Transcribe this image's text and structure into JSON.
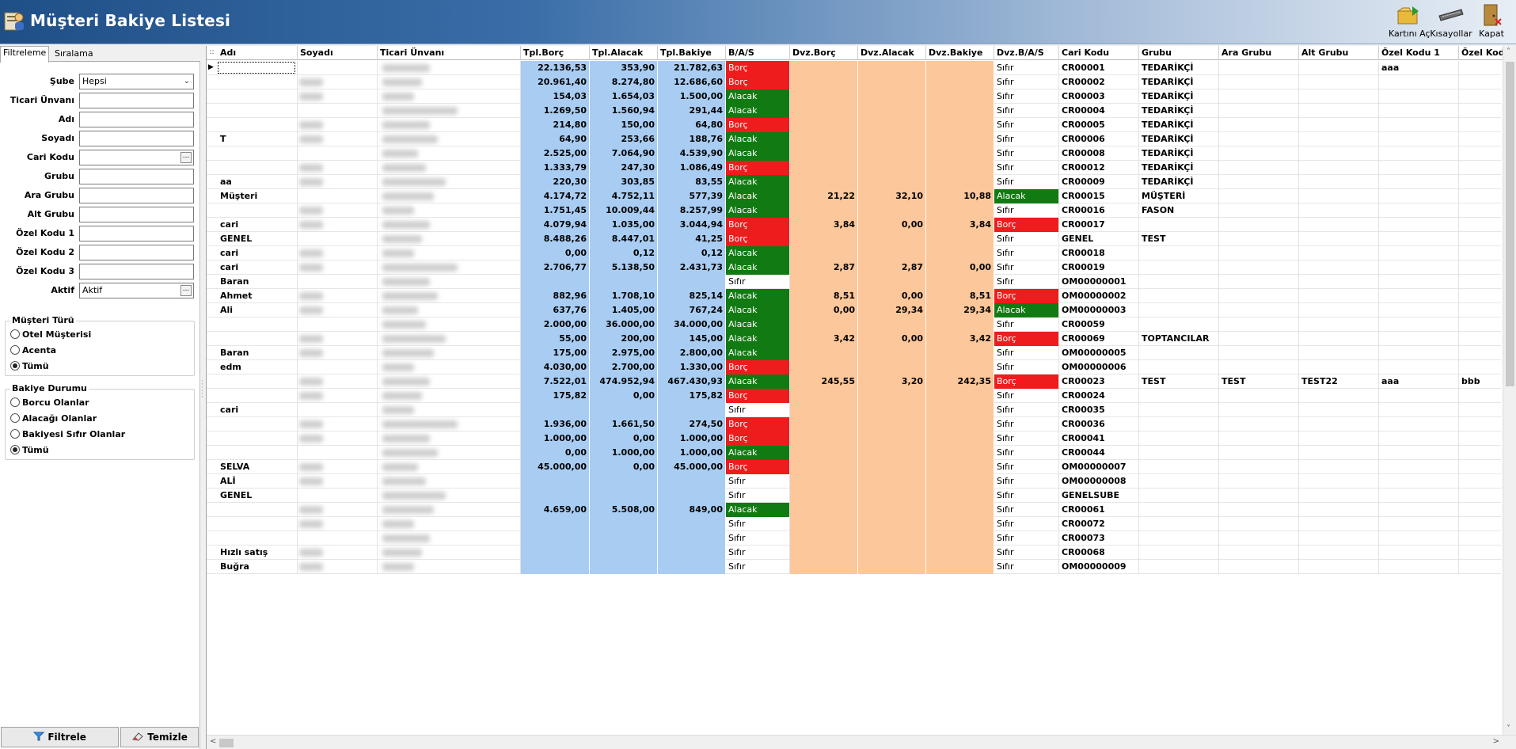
{
  "app": {
    "title": "Müşteri Bakiye Listesi"
  },
  "toolbar": {
    "open_card": "Kartını Aç",
    "shortcuts": "Kısayollar",
    "close": "Kapat"
  },
  "left": {
    "tabs": [
      "Filtreleme",
      "Sıralama"
    ],
    "filters": [
      {
        "label": "Şube",
        "value": "Hepsi",
        "kind": "dropdown"
      },
      {
        "label": "Ticari Ünvanı",
        "value": "",
        "kind": "text"
      },
      {
        "label": "Adı",
        "value": "",
        "kind": "text"
      },
      {
        "label": "Soyadı",
        "value": "",
        "kind": "text"
      },
      {
        "label": "Cari Kodu",
        "value": "",
        "kind": "ellipsis"
      },
      {
        "label": "Grubu",
        "value": "",
        "kind": "text"
      },
      {
        "label": "Ara Grubu",
        "value": "",
        "kind": "text"
      },
      {
        "label": "Alt Grubu",
        "value": "",
        "kind": "text"
      },
      {
        "label": "Özel Kodu 1",
        "value": "",
        "kind": "text"
      },
      {
        "label": "Özel Kodu 2",
        "value": "",
        "kind": "text"
      },
      {
        "label": "Özel Kodu 3",
        "value": "",
        "kind": "text"
      },
      {
        "label": "Aktif",
        "value": "Aktif",
        "kind": "ellipsis"
      }
    ],
    "customer_type": {
      "title": "Müşteri Türü",
      "options": [
        "Otel Müşterisi",
        "Acenta",
        "Tümü"
      ],
      "selected": 2
    },
    "balance_status": {
      "title": "Bakiye Durumu",
      "options": [
        "Borcu Olanlar",
        "Alacağı Olanlar",
        "Bakiyesi Sıfır Olanlar",
        "Tümü"
      ],
      "selected": 3
    },
    "filter_button": "Filtrele",
    "clear_button": "Temizle"
  },
  "grid": {
    "columns": [
      "Adı",
      "Soyadı",
      "Ticari Ünvanı",
      "Tpl.Borç",
      "Tpl.Alacak",
      "Tpl.Bakiye",
      "B/A/S",
      "Dvz.Borç",
      "Dvz.Alacak",
      "Dvz.Bakiye",
      "Dvz.B/A/S",
      "Cari Kodu",
      "Grubu",
      "Ara Grubu",
      "Alt Grubu",
      "Özel Kodu 1",
      "Özel Kodu"
    ],
    "rows": [
      {
        "adi": "",
        "borc": "22.136,53",
        "alacak": "353,90",
        "bakiye": "21.782,63",
        "bas": "Borç",
        "dborc": "",
        "dalacak": "",
        "dbakiye": "",
        "dbas": "Sıfır",
        "kod": "CR00001",
        "grubu": "TEDARİKÇİ",
        "ara": "",
        "alt": "",
        "ozel1": "aaa",
        "ozel": ""
      },
      {
        "adi": "",
        "borc": "20.961,40",
        "alacak": "8.274,80",
        "bakiye": "12.686,60",
        "bas": "Borç",
        "dborc": "",
        "dalacak": "",
        "dbakiye": "",
        "dbas": "Sıfır",
        "kod": "CR00002",
        "grubu": "TEDARİKÇİ",
        "ara": "",
        "alt": "",
        "ozel1": "",
        "ozel": ""
      },
      {
        "adi": "",
        "borc": "154,03",
        "alacak": "1.654,03",
        "bakiye": "1.500,00",
        "bas": "Alacak",
        "dborc": "",
        "dalacak": "",
        "dbakiye": "",
        "dbas": "Sıfır",
        "kod": "CR00003",
        "grubu": "TEDARİKÇİ",
        "ara": "",
        "alt": "",
        "ozel1": "",
        "ozel": ""
      },
      {
        "adi": "",
        "borc": "1.269,50",
        "alacak": "1.560,94",
        "bakiye": "291,44",
        "bas": "Alacak",
        "dborc": "",
        "dalacak": "",
        "dbakiye": "",
        "dbas": "Sıfır",
        "kod": "CR00004",
        "grubu": "TEDARİKÇİ",
        "ara": "",
        "alt": "",
        "ozel1": "",
        "ozel": ""
      },
      {
        "adi": "",
        "borc": "214,80",
        "alacak": "150,00",
        "bakiye": "64,80",
        "bas": "Borç",
        "dborc": "",
        "dalacak": "",
        "dbakiye": "",
        "dbas": "Sıfır",
        "kod": "CR00005",
        "grubu": "TEDARİKÇİ",
        "ara": "",
        "alt": "",
        "ozel1": "",
        "ozel": ""
      },
      {
        "adi": "T",
        "borc": "64,90",
        "alacak": "253,66",
        "bakiye": "188,76",
        "bas": "Alacak",
        "dborc": "",
        "dalacak": "",
        "dbakiye": "",
        "dbas": "Sıfır",
        "kod": "CR00006",
        "grubu": "TEDARİKÇİ",
        "ara": "",
        "alt": "",
        "ozel1": "",
        "ozel": ""
      },
      {
        "adi": "",
        "borc": "2.525,00",
        "alacak": "7.064,90",
        "bakiye": "4.539,90",
        "bas": "Alacak",
        "dborc": "",
        "dalacak": "",
        "dbakiye": "",
        "dbas": "Sıfır",
        "kod": "CR00008",
        "grubu": "TEDARİKÇİ",
        "ara": "",
        "alt": "",
        "ozel1": "",
        "ozel": ""
      },
      {
        "adi": "",
        "borc": "1.333,79",
        "alacak": "247,30",
        "bakiye": "1.086,49",
        "bas": "Borç",
        "dborc": "",
        "dalacak": "",
        "dbakiye": "",
        "dbas": "Sıfır",
        "kod": "CR00012",
        "grubu": "TEDARİKÇİ",
        "ara": "",
        "alt": "",
        "ozel1": "",
        "ozel": ""
      },
      {
        "adi": "aa",
        "borc": "220,30",
        "alacak": "303,85",
        "bakiye": "83,55",
        "bas": "Alacak",
        "dborc": "",
        "dalacak": "",
        "dbakiye": "",
        "dbas": "Sıfır",
        "kod": "CR00009",
        "grubu": "TEDARİKÇİ",
        "ara": "",
        "alt": "",
        "ozel1": "",
        "ozel": ""
      },
      {
        "adi": "Müşteri",
        "borc": "4.174,72",
        "alacak": "4.752,11",
        "bakiye": "577,39",
        "bas": "Alacak",
        "dborc": "21,22",
        "dalacak": "32,10",
        "dbakiye": "10,88",
        "dbas": "Alacak",
        "kod": "CR00015",
        "grubu": "MÜŞTERİ",
        "ara": "",
        "alt": "",
        "ozel1": "",
        "ozel": ""
      },
      {
        "adi": "",
        "borc": "1.751,45",
        "alacak": "10.009,44",
        "bakiye": "8.257,99",
        "bas": "Alacak",
        "dborc": "",
        "dalacak": "",
        "dbakiye": "",
        "dbas": "Sıfır",
        "kod": "CR00016",
        "grubu": "FASON",
        "ara": "",
        "alt": "",
        "ozel1": "",
        "ozel": ""
      },
      {
        "adi": "cari",
        "borc": "4.079,94",
        "alacak": "1.035,00",
        "bakiye": "3.044,94",
        "bas": "Borç",
        "dborc": "3,84",
        "dalacak": "0,00",
        "dbakiye": "3,84",
        "dbas": "Borç",
        "kod": "CR00017",
        "grubu": "",
        "ara": "",
        "alt": "",
        "ozel1": "",
        "ozel": ""
      },
      {
        "adi": "GENEL",
        "borc": "8.488,26",
        "alacak": "8.447,01",
        "bakiye": "41,25",
        "bas": "Borç",
        "dborc": "",
        "dalacak": "",
        "dbakiye": "",
        "dbas": "Sıfır",
        "kod": "GENEL",
        "grubu": "TEST",
        "ara": "",
        "alt": "",
        "ozel1": "",
        "ozel": ""
      },
      {
        "adi": "cari",
        "borc": "0,00",
        "alacak": "0,12",
        "bakiye": "0,12",
        "bas": "Alacak",
        "dborc": "",
        "dalacak": "",
        "dbakiye": "",
        "dbas": "Sıfır",
        "kod": "CR00018",
        "grubu": "",
        "ara": "",
        "alt": "",
        "ozel1": "",
        "ozel": ""
      },
      {
        "adi": "cari",
        "borc": "2.706,77",
        "alacak": "5.138,50",
        "bakiye": "2.431,73",
        "bas": "Alacak",
        "dborc": "2,87",
        "dalacak": "2,87",
        "dbakiye": "0,00",
        "dbas": "Sıfır",
        "kod": "CR00019",
        "grubu": "",
        "ara": "",
        "alt": "",
        "ozel1": "",
        "ozel": ""
      },
      {
        "adi": "Baran",
        "borc": "",
        "alacak": "",
        "bakiye": "",
        "bas": "Sıfır",
        "dborc": "",
        "dalacak": "",
        "dbakiye": "",
        "dbas": "Sıfır",
        "kod": "OM00000001",
        "grubu": "",
        "ara": "",
        "alt": "",
        "ozel1": "",
        "ozel": ""
      },
      {
        "adi": "Ahmet",
        "borc": "882,96",
        "alacak": "1.708,10",
        "bakiye": "825,14",
        "bas": "Alacak",
        "dborc": "8,51",
        "dalacak": "0,00",
        "dbakiye": "8,51",
        "dbas": "Borç",
        "kod": "OM00000002",
        "grubu": "",
        "ara": "",
        "alt": "",
        "ozel1": "",
        "ozel": ""
      },
      {
        "adi": "Ali",
        "borc": "637,76",
        "alacak": "1.405,00",
        "bakiye": "767,24",
        "bas": "Alacak",
        "dborc": "0,00",
        "dalacak": "29,34",
        "dbakiye": "29,34",
        "dbas": "Alacak",
        "kod": "OM00000003",
        "grubu": "",
        "ara": "",
        "alt": "",
        "ozel1": "",
        "ozel": ""
      },
      {
        "adi": "",
        "borc": "2.000,00",
        "alacak": "36.000,00",
        "bakiye": "34.000,00",
        "bas": "Alacak",
        "dborc": "",
        "dalacak": "",
        "dbakiye": "",
        "dbas": "Sıfır",
        "kod": "CR00059",
        "grubu": "",
        "ara": "",
        "alt": "",
        "ozel1": "",
        "ozel": ""
      },
      {
        "adi": "",
        "borc": "55,00",
        "alacak": "200,00",
        "bakiye": "145,00",
        "bas": "Alacak",
        "dborc": "3,42",
        "dalacak": "0,00",
        "dbakiye": "3,42",
        "dbas": "Borç",
        "kod": "CR00069",
        "grubu": "TOPTANCILAR",
        "ara": "",
        "alt": "",
        "ozel1": "",
        "ozel": ""
      },
      {
        "adi": "Baran",
        "borc": "175,00",
        "alacak": "2.975,00",
        "bakiye": "2.800,00",
        "bas": "Alacak",
        "dborc": "",
        "dalacak": "",
        "dbakiye": "",
        "dbas": "Sıfır",
        "kod": "OM00000005",
        "grubu": "",
        "ara": "",
        "alt": "",
        "ozel1": "",
        "ozel": ""
      },
      {
        "adi": "edm",
        "borc": "4.030,00",
        "alacak": "2.700,00",
        "bakiye": "1.330,00",
        "bas": "Borç",
        "dborc": "",
        "dalacak": "",
        "dbakiye": "",
        "dbas": "Sıfır",
        "kod": "OM00000006",
        "grubu": "",
        "ara": "",
        "alt": "",
        "ozel1": "",
        "ozel": ""
      },
      {
        "adi": "",
        "borc": "7.522,01",
        "alacak": "474.952,94",
        "bakiye": "467.430,93",
        "bas": "Alacak",
        "dborc": "245,55",
        "dalacak": "3,20",
        "dbakiye": "242,35",
        "dbas": "Borç",
        "kod": "CR00023",
        "grubu": "TEST",
        "ara": "TEST",
        "alt": "TEST22",
        "ozel1": "aaa",
        "ozel": "bbb"
      },
      {
        "adi": "",
        "borc": "175,82",
        "alacak": "0,00",
        "bakiye": "175,82",
        "bas": "Borç",
        "dborc": "",
        "dalacak": "",
        "dbakiye": "",
        "dbas": "Sıfır",
        "kod": "CR00024",
        "grubu": "",
        "ara": "",
        "alt": "",
        "ozel1": "",
        "ozel": ""
      },
      {
        "adi": "cari",
        "borc": "",
        "alacak": "",
        "bakiye": "",
        "bas": "Sıfır",
        "dborc": "",
        "dalacak": "",
        "dbakiye": "",
        "dbas": "Sıfır",
        "kod": "CR00035",
        "grubu": "",
        "ara": "",
        "alt": "",
        "ozel1": "",
        "ozel": ""
      },
      {
        "adi": "",
        "borc": "1.936,00",
        "alacak": "1.661,50",
        "bakiye": "274,50",
        "bas": "Borç",
        "dborc": "",
        "dalacak": "",
        "dbakiye": "",
        "dbas": "Sıfır",
        "kod": "CR00036",
        "grubu": "",
        "ara": "",
        "alt": "",
        "ozel1": "",
        "ozel": ""
      },
      {
        "adi": "",
        "borc": "1.000,00",
        "alacak": "0,00",
        "bakiye": "1.000,00",
        "bas": "Borç",
        "dborc": "",
        "dalacak": "",
        "dbakiye": "",
        "dbas": "Sıfır",
        "kod": "CR00041",
        "grubu": "",
        "ara": "",
        "alt": "",
        "ozel1": "",
        "ozel": ""
      },
      {
        "adi": "",
        "borc": "0,00",
        "alacak": "1.000,00",
        "bakiye": "1.000,00",
        "bas": "Alacak",
        "dborc": "",
        "dalacak": "",
        "dbakiye": "",
        "dbas": "Sıfır",
        "kod": "CR00044",
        "grubu": "",
        "ara": "",
        "alt": "",
        "ozel1": "",
        "ozel": ""
      },
      {
        "adi": "SELVA",
        "borc": "45.000,00",
        "alacak": "0,00",
        "bakiye": "45.000,00",
        "bas": "Borç",
        "dborc": "",
        "dalacak": "",
        "dbakiye": "",
        "dbas": "Sıfır",
        "kod": "OM00000007",
        "grubu": "",
        "ara": "",
        "alt": "",
        "ozel1": "",
        "ozel": ""
      },
      {
        "adi": "ALİ",
        "borc": "",
        "alacak": "",
        "bakiye": "",
        "bas": "Sıfır",
        "dborc": "",
        "dalacak": "",
        "dbakiye": "",
        "dbas": "Sıfır",
        "kod": "OM00000008",
        "grubu": "",
        "ara": "",
        "alt": "",
        "ozel1": "",
        "ozel": ""
      },
      {
        "adi": "GENEL",
        "borc": "",
        "alacak": "",
        "bakiye": "",
        "bas": "Sıfır",
        "dborc": "",
        "dalacak": "",
        "dbakiye": "",
        "dbas": "Sıfır",
        "kod": "GENELSUBE",
        "grubu": "",
        "ara": "",
        "alt": "",
        "ozel1": "",
        "ozel": ""
      },
      {
        "adi": "",
        "borc": "4.659,00",
        "alacak": "5.508,00",
        "bakiye": "849,00",
        "bas": "Alacak",
        "dborc": "",
        "dalacak": "",
        "dbakiye": "",
        "dbas": "Sıfır",
        "kod": "CR00061",
        "grubu": "",
        "ara": "",
        "alt": "",
        "ozel1": "",
        "ozel": ""
      },
      {
        "adi": "",
        "borc": "",
        "alacak": "",
        "bakiye": "",
        "bas": "Sıfır",
        "dborc": "",
        "dalacak": "",
        "dbakiye": "",
        "dbas": "Sıfır",
        "kod": "CR00072",
        "grubu": "",
        "ara": "",
        "alt": "",
        "ozel1": "",
        "ozel": ""
      },
      {
        "adi": "",
        "borc": "",
        "alacak": "",
        "bakiye": "",
        "bas": "Sıfır",
        "dborc": "",
        "dalacak": "",
        "dbakiye": "",
        "dbas": "Sıfır",
        "kod": "CR00073",
        "grubu": "",
        "ara": "",
        "alt": "",
        "ozel1": "",
        "ozel": ""
      },
      {
        "adi": "Hızlı satış",
        "borc": "",
        "alacak": "",
        "bakiye": "",
        "bas": "Sıfır",
        "dborc": "",
        "dalacak": "",
        "dbakiye": "",
        "dbas": "Sıfır",
        "kod": "CR00068",
        "grubu": "",
        "ara": "",
        "alt": "",
        "ozel1": "",
        "ozel": ""
      },
      {
        "adi": "Buğra",
        "borc": "",
        "alacak": "",
        "bakiye": "",
        "bas": "Sıfır",
        "dborc": "",
        "dalacak": "",
        "dbakiye": "",
        "dbas": "Sıfır",
        "kod": "OM00000009",
        "grubu": "",
        "ara": "",
        "alt": "",
        "ozel1": "",
        "ozel": ""
      }
    ]
  },
  "colors": {
    "borc": "#ee1c1c",
    "alacak": "#127a12",
    "tl_columns": "#a9cdf2",
    "fx_columns": "#fcc79a"
  }
}
